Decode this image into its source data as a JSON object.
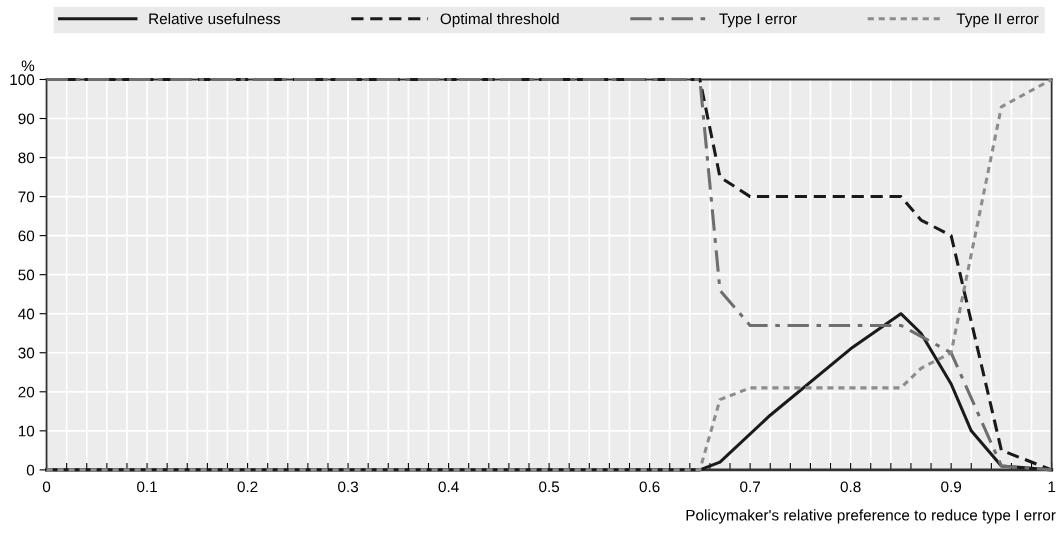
{
  "chart_data": {
    "type": "line",
    "ylabel": "%",
    "xlabel": "Policymaker's relative preference to reduce type I error",
    "xlim": [
      0,
      1
    ],
    "ylim": [
      0,
      100
    ],
    "xticks": [
      0,
      {
        "value": 0.02,
        "label": null
      },
      {
        "value": 0.04,
        "label": null
      },
      {
        "value": 0.06,
        "label": null
      },
      {
        "value": 0.08,
        "label": null
      },
      0.1,
      {
        "value": 0.12,
        "label": null
      },
      {
        "value": 0.14,
        "label": null
      },
      {
        "value": 0.16,
        "label": null
      },
      {
        "value": 0.18,
        "label": null
      },
      0.2,
      {
        "value": 0.22,
        "label": null
      },
      {
        "value": 0.24,
        "label": null
      },
      {
        "value": 0.26,
        "label": null
      },
      {
        "value": 0.28,
        "label": null
      },
      0.3,
      {
        "value": 0.32,
        "label": null
      },
      {
        "value": 0.34,
        "label": null
      },
      {
        "value": 0.36,
        "label": null
      },
      {
        "value": 0.38,
        "label": null
      },
      0.4,
      {
        "value": 0.42,
        "label": null
      },
      {
        "value": 0.44,
        "label": null
      },
      {
        "value": 0.46,
        "label": null
      },
      {
        "value": 0.48,
        "label": null
      },
      0.5,
      {
        "value": 0.52,
        "label": null
      },
      {
        "value": 0.54,
        "label": null
      },
      {
        "value": 0.56,
        "label": null
      },
      {
        "value": 0.58,
        "label": null
      },
      0.6,
      {
        "value": 0.62,
        "label": null
      },
      {
        "value": 0.64,
        "label": null
      },
      {
        "value": 0.66,
        "label": null
      },
      {
        "value": 0.68,
        "label": null
      },
      0.7,
      {
        "value": 0.72,
        "label": null
      },
      {
        "value": 0.74,
        "label": null
      },
      {
        "value": 0.76,
        "label": null
      },
      {
        "value": 0.78,
        "label": null
      },
      0.8,
      {
        "value": 0.82,
        "label": null
      },
      {
        "value": 0.84,
        "label": null
      },
      {
        "value": 0.86,
        "label": null
      },
      {
        "value": 0.88,
        "label": null
      },
      0.9,
      {
        "value": 0.92,
        "label": null
      },
      {
        "value": 0.94,
        "label": null
      },
      {
        "value": 0.96,
        "label": null
      },
      {
        "value": 0.98,
        "label": null
      },
      1
    ],
    "yticks": [
      0,
      10,
      20,
      30,
      40,
      50,
      60,
      70,
      80,
      90,
      100
    ],
    "grid": true,
    "legend": "top",
    "series": [
      {
        "name": "Relative usefulness",
        "color": "#1a1a1a",
        "line_style": "solid",
        "x": [
          0,
          0.65,
          0.67,
          0.72,
          0.8,
          0.85,
          0.87,
          0.9,
          0.92,
          0.95,
          1
        ],
        "values": [
          0,
          0,
          2,
          14,
          31,
          40,
          35,
          22,
          10,
          1,
          0
        ]
      },
      {
        "name": "Optimal threshold",
        "color": "#1a1a1a",
        "line_style": "dashed",
        "x": [
          0,
          0.65,
          0.67,
          0.7,
          0.85,
          0.87,
          0.9,
          0.95,
          1
        ],
        "values": [
          100,
          100,
          75,
          70,
          70,
          64,
          60,
          5,
          0
        ]
      },
      {
        "name": "Type I error",
        "color": "#6e6e6e",
        "line_style": "dashdot",
        "x": [
          0,
          0.65,
          0.67,
          0.7,
          0.85,
          0.9,
          0.95,
          1
        ],
        "values": [
          100,
          100,
          46,
          37,
          37,
          30,
          1,
          0
        ]
      },
      {
        "name": "Type II error",
        "color": "#8c8c8c",
        "line_style": "dotted",
        "x": [
          0,
          0.65,
          0.67,
          0.7,
          0.85,
          0.87,
          0.9,
          0.95,
          1
        ],
        "values": [
          0,
          0,
          18,
          21,
          21,
          26,
          30,
          93,
          100
        ]
      }
    ]
  }
}
